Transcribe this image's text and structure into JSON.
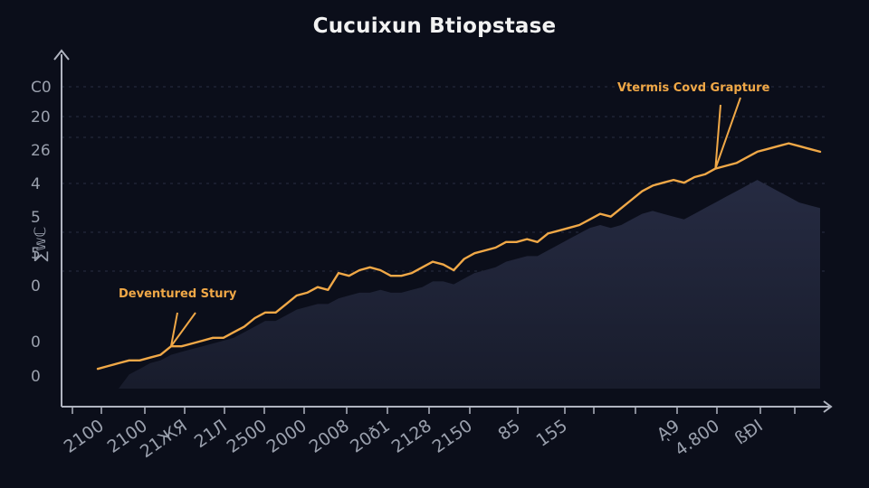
{
  "chart_data": {
    "type": "area",
    "title": "Cucuixun Btiopstase",
    "xlabel": "",
    "ylabel": "∑𝕨ℂ",
    "y_tick_labels": [
      "C0",
      "20",
      "26",
      "4",
      "5",
      "5",
      "0",
      "0",
      "0"
    ],
    "x_tick_labels": [
      "2100",
      "2100",
      "21ЖЯ",
      "21Л",
      "2500",
      "2000",
      "2008",
      "20ð1",
      "2128",
      "2150",
      "85",
      "155",
      "ᾼ9",
      "4.800",
      "ßÐI"
    ],
    "grid": true,
    "legend": "none",
    "colors": {
      "line": "#f0a847",
      "fill": "#1f2438",
      "background": "#0b0e1a",
      "axis": "#b0b4c0",
      "text": "#9aa0ad"
    },
    "series": [
      {
        "style": "line",
        "x": [
          0,
          1,
          2,
          3,
          4,
          5,
          6,
          7,
          8,
          9,
          10,
          11,
          12,
          13,
          14,
          15,
          16,
          17,
          18,
          19,
          20,
          21,
          22,
          23,
          24,
          25,
          26,
          27,
          28,
          29,
          30,
          31,
          32,
          33,
          34,
          35,
          36,
          37,
          38,
          39,
          40,
          41,
          42,
          43,
          44,
          45,
          46,
          47,
          48,
          49,
          50,
          51,
          52,
          53,
          54,
          55,
          56,
          57,
          58,
          59,
          60,
          61,
          62,
          63,
          64,
          65,
          66,
          67,
          68,
          69
        ],
        "values": [
          7,
          8,
          9,
          10,
          10,
          11,
          12,
          15,
          15,
          16,
          17,
          18,
          18,
          20,
          22,
          25,
          27,
          27,
          30,
          33,
          34,
          36,
          35,
          41,
          40,
          42,
          43,
          42,
          40,
          40,
          41,
          43,
          45,
          44,
          42,
          46,
          48,
          49,
          50,
          52,
          52,
          53,
          52,
          55,
          56,
          57,
          58,
          60,
          62,
          61,
          64,
          67,
          70,
          72,
          73,
          74,
          73,
          75,
          76,
          78,
          79,
          80,
          82,
          84,
          85,
          86,
          87,
          86,
          85,
          84
        ]
      },
      {
        "style": "area",
        "x": [
          0,
          1,
          2,
          3,
          4,
          5,
          6,
          7,
          8,
          9,
          10,
          11,
          12,
          13,
          14,
          15,
          16,
          17,
          18,
          19,
          20,
          21,
          22,
          23,
          24,
          25,
          26,
          27,
          28,
          29,
          30,
          31,
          32,
          33,
          34,
          35,
          36,
          37,
          38,
          39,
          40,
          41,
          42,
          43,
          44,
          45,
          46,
          47,
          48,
          49,
          50,
          51,
          52,
          53,
          54,
          55,
          56,
          57,
          58,
          59,
          60,
          61,
          62,
          63,
          64,
          65,
          66,
          67,
          68,
          69
        ],
        "values": [
          0,
          0,
          0,
          5,
          7,
          9,
          10,
          12,
          13,
          14,
          15,
          16,
          17,
          18,
          20,
          22,
          24,
          24,
          26,
          28,
          29,
          30,
          30,
          32,
          33,
          34,
          34,
          35,
          34,
          34,
          35,
          36,
          38,
          38,
          37,
          39,
          41,
          42,
          43,
          45,
          46,
          47,
          47,
          49,
          51,
          53,
          55,
          57,
          58,
          57,
          58,
          60,
          62,
          63,
          62,
          61,
          60,
          62,
          64,
          66,
          68,
          70,
          72,
          74,
          72,
          70,
          68,
          66,
          65,
          64
        ]
      }
    ],
    "annotations": [
      {
        "text": "Deventured Stury",
        "x": 7,
        "y": 15
      },
      {
        "text": "Vtermis Covd Grapture",
        "x": 59,
        "y": 78
      }
    ]
  }
}
